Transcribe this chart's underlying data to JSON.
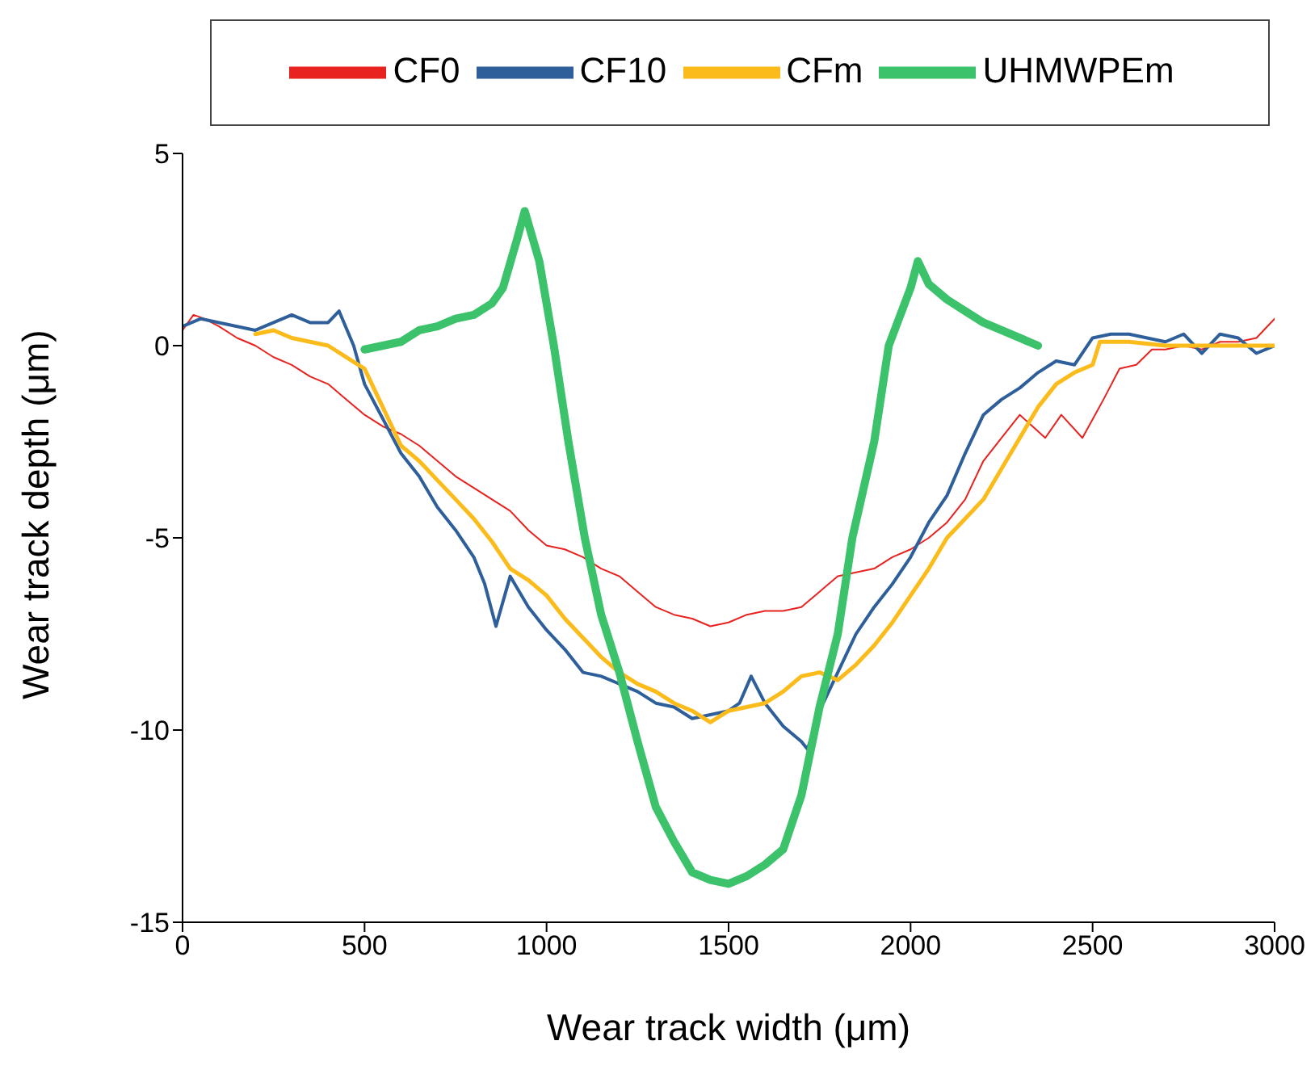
{
  "chart_data": {
    "type": "line",
    "xlabel": "Wear track width (μm)",
    "ylabel": "Wear track depth (μm)",
    "xlim": [
      0,
      3000
    ],
    "xticks": [
      0,
      500,
      1000,
      1500,
      2000,
      2500,
      3000
    ],
    "ylim": [
      -15,
      5
    ],
    "yticks": [
      -15,
      -10,
      -5,
      0,
      5
    ],
    "legend": "top",
    "marker": "none",
    "line_style": "solid",
    "series": [
      {
        "name": "CF0",
        "color": "#e8231f",
        "x": [
          0,
          30,
          60,
          100,
          150,
          200,
          250,
          300,
          350,
          400,
          450,
          500,
          550,
          600,
          650,
          700,
          750,
          800,
          850,
          900,
          950,
          1000,
          1050,
          1100,
          1150,
          1200,
          1250,
          1300,
          1350,
          1400,
          1450,
          1500,
          1550,
          1600,
          1650,
          1700,
          1750,
          1800,
          1850,
          1900,
          1950,
          2000,
          2050,
          2100,
          2150,
          2200,
          2250,
          2300,
          2370,
          2414,
          2472,
          2530,
          2574,
          2620,
          2663,
          2700,
          2750,
          2800,
          2850,
          2900,
          2950,
          3000
        ],
        "values": [
          0.4,
          0.8,
          0.7,
          0.5,
          0.2,
          0,
          -0.3,
          -0.5,
          -0.8,
          -1.0,
          -1.4,
          -1.8,
          -2.1,
          -2.3,
          -2.6,
          -3.0,
          -3.4,
          -3.7,
          -4.0,
          -4.3,
          -4.8,
          -5.2,
          -5.3,
          -5.5,
          -5.8,
          -6.0,
          -6.4,
          -6.8,
          -7.0,
          -7.1,
          -7.3,
          -7.2,
          -7.0,
          -6.9,
          -6.9,
          -6.8,
          -6.4,
          -6.0,
          -5.9,
          -5.8,
          -5.5,
          -5.3,
          -5.0,
          -4.6,
          -4.0,
          -3.0,
          -2.4,
          -1.8,
          -2.4,
          -1.8,
          -2.4,
          -1.4,
          -0.6,
          -0.5,
          -0.1,
          -0.1,
          0.0,
          -0.1,
          0.1,
          0.1,
          0.2,
          0.7
        ]
      },
      {
        "name": "CF10",
        "color": "#2e5f9a",
        "x": [
          0,
          50,
          100,
          150,
          200,
          250,
          300,
          350,
          400,
          430,
          470,
          500,
          550,
          600,
          650,
          700,
          750,
          800,
          830,
          861,
          900,
          950,
          1000,
          1050,
          1100,
          1150,
          1200,
          1250,
          1300,
          1350,
          1400,
          1450,
          1500,
          1530,
          1562,
          1600,
          1650,
          1700,
          1717,
          1750,
          1800,
          1850,
          1900,
          1950,
          2000,
          2050,
          2100,
          2150,
          2200,
          2250,
          2300,
          2350,
          2400,
          2450,
          2500,
          2550,
          2600,
          2650,
          2700,
          2750,
          2800,
          2850,
          2900,
          2950,
          3000
        ],
        "values": [
          0.5,
          0.7,
          0.6,
          0.5,
          0.4,
          0.6,
          0.8,
          0.6,
          0.6,
          0.9,
          0,
          -1.0,
          -1.9,
          -2.8,
          -3.4,
          -4.2,
          -4.8,
          -5.5,
          -6.2,
          -7.3,
          -6.0,
          -6.8,
          -7.4,
          -7.9,
          -8.5,
          -8.6,
          -8.8,
          -9.0,
          -9.3,
          -9.4,
          -9.7,
          -9.6,
          -9.5,
          -9.3,
          -8.6,
          -9.3,
          -9.9,
          -10.3,
          -10.5,
          -9.5,
          -8.5,
          -7.5,
          -6.8,
          -6.2,
          -5.5,
          -4.6,
          -3.9,
          -2.8,
          -1.8,
          -1.4,
          -1.1,
          -0.7,
          -0.4,
          -0.5,
          0.2,
          0.3,
          0.3,
          0.2,
          0.1,
          0.3,
          -0.2,
          0.3,
          0.2,
          -0.2,
          0.0
        ]
      },
      {
        "name": "CFm",
        "color": "#fbbb1a",
        "x": [
          200,
          250,
          300,
          350,
          400,
          450,
          500,
          550,
          600,
          650,
          700,
          750,
          800,
          850,
          900,
          950,
          1000,
          1050,
          1100,
          1150,
          1200,
          1250,
          1300,
          1350,
          1400,
          1450,
          1500,
          1550,
          1600,
          1650,
          1700,
          1750,
          1800,
          1850,
          1900,
          1950,
          2000,
          2050,
          2100,
          2150,
          2200,
          2250,
          2300,
          2350,
          2400,
          2450,
          2500,
          2520,
          2600,
          2700,
          2800,
          2900,
          3000
        ],
        "values": [
          0.3,
          0.4,
          0.2,
          0.1,
          0,
          -0.3,
          -0.6,
          -1.6,
          -2.6,
          -3.0,
          -3.5,
          -4.0,
          -4.5,
          -5.1,
          -5.8,
          -6.1,
          -6.5,
          -7.1,
          -7.6,
          -8.1,
          -8.5,
          -8.8,
          -9.0,
          -9.3,
          -9.5,
          -9.8,
          -9.5,
          -9.4,
          -9.3,
          -9.0,
          -8.6,
          -8.5,
          -8.7,
          -8.3,
          -7.8,
          -7.2,
          -6.5,
          -5.8,
          -5.0,
          -4.5,
          -4.0,
          -3.2,
          -2.4,
          -1.6,
          -1.0,
          -0.7,
          -0.5,
          0.1,
          0.1,
          0.0,
          0.0,
          0.0,
          0.0
        ]
      },
      {
        "name": "UHMWPEm",
        "color": "#3cc26a",
        "x": [
          500,
          550,
          600,
          650,
          700,
          750,
          800,
          850,
          880,
          920,
          940,
          980,
          1020,
          1060,
          1105,
          1150,
          1200,
          1250,
          1300,
          1350,
          1400,
          1450,
          1500,
          1550,
          1600,
          1650,
          1700,
          1750,
          1800,
          1840,
          1900,
          1940,
          2000,
          2020,
          2050,
          2100,
          2150,
          2200,
          2250,
          2300,
          2350
        ],
        "values": [
          -0.1,
          0.0,
          0.1,
          0.4,
          0.5,
          0.7,
          0.8,
          1.1,
          1.5,
          2.8,
          3.5,
          2.2,
          0,
          -2.5,
          -5.0,
          -7.0,
          -8.5,
          -10.3,
          -12.0,
          -12.9,
          -13.7,
          -13.9,
          -14.0,
          -13.8,
          -13.5,
          -13.1,
          -11.7,
          -9.4,
          -7.5,
          -5.0,
          -2.5,
          0,
          1.5,
          2.2,
          1.6,
          1.2,
          0.9,
          0.6,
          0.4,
          0.2,
          0.0
        ]
      }
    ]
  }
}
